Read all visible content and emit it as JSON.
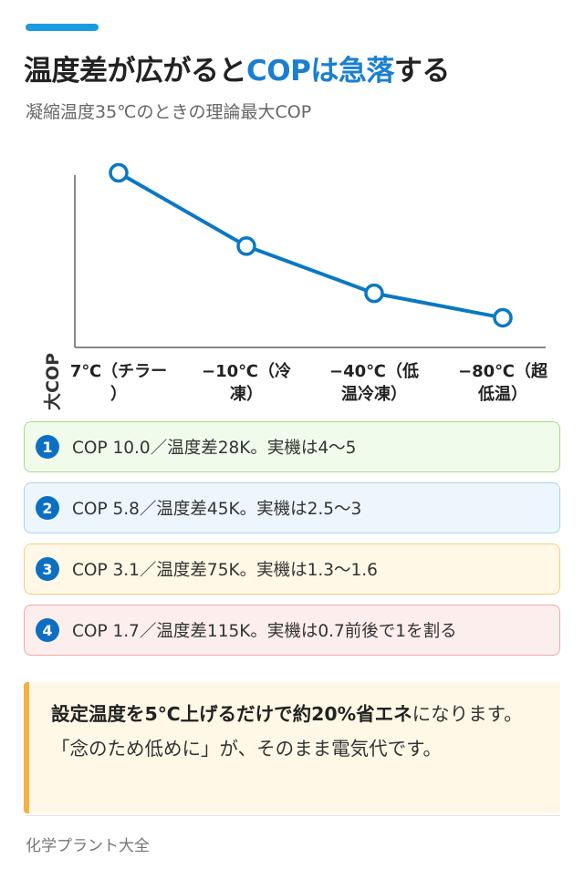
{
  "header": {
    "title_pre": "温度差が広がると",
    "title_hl": "COPは急落",
    "title_post": "する",
    "subtitle": "凝縮温度35℃のときの理論最大COP",
    "accent_color": "#1a9be0",
    "highlight_color": "#1a7fd0"
  },
  "chart_data": {
    "type": "line",
    "ylabel": "理論最大COP",
    "categories": [
      [
        "7℃（チラー",
        "）"
      ],
      [
        "−10℃（冷",
        "凍）"
      ],
      [
        "−40℃（低",
        "温冷凍）"
      ],
      [
        "−80℃（超",
        "低温）"
      ]
    ],
    "values": [
      10.0,
      5.8,
      3.1,
      1.7
    ],
    "ylim": [
      0,
      10.6
    ],
    "grid": false,
    "line_color": "#0a78c2"
  },
  "cards": [
    {
      "num": "1",
      "text": "COP 10.0／温度差28K。実機は4〜5",
      "bg": "#f1fbec",
      "border": "#a7d98c"
    },
    {
      "num": "2",
      "text": "COP 5.8／温度差45K。実機は2.5〜3",
      "bg": "#eef6fd",
      "border": "#a9d3f0"
    },
    {
      "num": "3",
      "text": "COP 3.1／温度差75K。実機は1.3〜1.6",
      "bg": "#fff8e6",
      "border": "#f5cf7f"
    },
    {
      "num": "4",
      "text": "COP 1.7／温度差115K。実機は0.7前後で1を割る",
      "bg": "#fdeeee",
      "border": "#f0a9a9"
    }
  ],
  "note": {
    "bold": "設定温度を5℃上げるだけで約20%省エネ",
    "rest": "になります。「念のため低めに」が、そのまま電気代です。"
  },
  "footer": {
    "source": "化学プラント大全"
  }
}
